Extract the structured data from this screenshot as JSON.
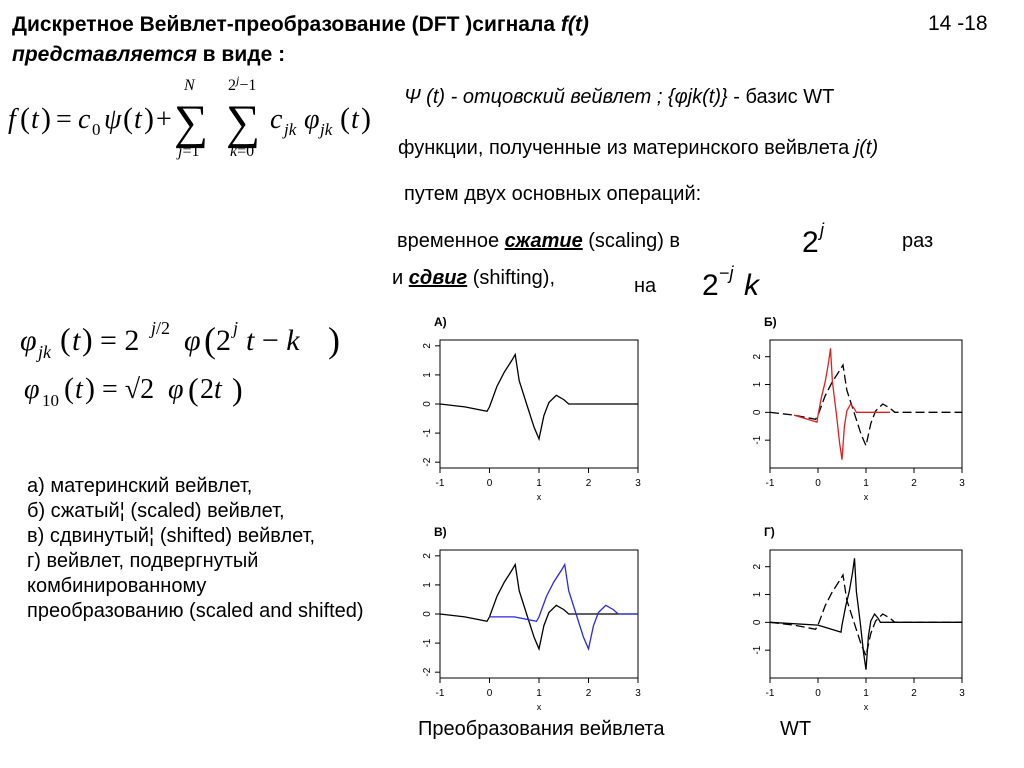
{
  "slide": {
    "title_line1_prefix": "Дискретное Вейвлет-преобразование (DFT )сигнала ",
    "title_fx": "f(t)",
    "title_line2_italic": "представляется",
    "title_line2_rest": " в виде :",
    "number": "14 -18"
  },
  "formulas": {
    "main": "f(t) = c0 ψ(t) + Σ(j=1..N) Σ(k=0..2^j−1) cjk φjk(t)",
    "phi_jk": "φjk(t) = 2^(j/2) φ(2^j t − k)",
    "phi_10": "φ10(t) = √2 φ(2t)",
    "scale_factor": "2^j",
    "shift_factor": "2^−j k"
  },
  "text": {
    "psi_line_italic": "Ψ (t) - отцовский вейвлет ;  {φjk(t)}",
    "psi_line_rest": " - базис WT",
    "functions_line": "функции, полученные из материнского вейвлета ",
    "functions_italic": "j(t)",
    "ops_line": "путем двух основных операций:",
    "temporal_prefix": "временное ",
    "temporal_bold": "сжатие",
    "temporal_suffix": " (scaling) в",
    "times": "раз",
    "shift_prefix": "и ",
    "shift_bold": "сдвиг",
    "shift_suffix": " (shifting),",
    "on": "на"
  },
  "list": [
    "а) материнский вейвлет,",
    "б) сжатый¦ (scaled) вейвлет,",
    "в) сдвинутый¦ (shifted) вейвлет,",
    "г) вейвлет, подвергнутый комбинированному преобразованию (scaled and shifted)"
  ],
  "caption": {
    "left": "Преобразования вейвлета",
    "right": "WT"
  },
  "chart_data": [
    {
      "type": "line",
      "title": "А)",
      "xlabel": "x",
      "xlim": [
        -1,
        3
      ],
      "ylim": [
        -2.2,
        2.2
      ],
      "x_ticks": [
        -1,
        0,
        1,
        2,
        3
      ],
      "y_ticks": [
        -2,
        -1,
        0,
        1,
        2
      ],
      "series": [
        {
          "color": "#000000",
          "dash": false,
          "x": [
            -1,
            -0.5,
            -0.05,
            0.0,
            0.15,
            0.3,
            0.45,
            0.52,
            0.6,
            0.75,
            0.9,
            1.0,
            1.1,
            1.2,
            1.35,
            1.5,
            1.6,
            2.0,
            3.0
          ],
          "y": [
            0,
            -0.1,
            -0.25,
            -0.1,
            0.6,
            1.1,
            1.5,
            1.7,
            0.8,
            0.0,
            -0.8,
            -1.2,
            -0.4,
            0.05,
            0.3,
            0.15,
            0.0,
            0.0,
            0.0
          ]
        }
      ]
    },
    {
      "type": "line",
      "title": "Б)",
      "xlabel": "x",
      "xlim": [
        -1,
        3
      ],
      "ylim": [
        -2.0,
        2.6
      ],
      "x_ticks": [
        -1,
        0,
        1,
        2,
        3
      ],
      "y_ticks": [
        -1,
        0,
        1,
        2
      ],
      "series": [
        {
          "color": "#000000",
          "dash": true,
          "x": [
            -1,
            -0.5,
            -0.05,
            0.0,
            0.15,
            0.3,
            0.45,
            0.52,
            0.6,
            0.75,
            0.9,
            1.0,
            1.1,
            1.2,
            1.35,
            1.5,
            1.6,
            2.0,
            3.0
          ],
          "y": [
            0,
            -0.1,
            -0.25,
            -0.1,
            0.6,
            1.1,
            1.5,
            1.7,
            0.8,
            0.0,
            -0.8,
            -1.2,
            -0.4,
            0.05,
            0.3,
            0.15,
            0.0,
            0.0,
            0.0
          ]
        },
        {
          "color": "#e02020",
          "dash": false,
          "x": [
            -0.5,
            -0.02,
            0.0,
            0.08,
            0.15,
            0.22,
            0.26,
            0.3,
            0.38,
            0.45,
            0.5,
            0.55,
            0.6,
            0.68,
            0.75,
            0.8,
            1.0,
            1.5
          ],
          "y": [
            -0.1,
            -0.35,
            -0.1,
            0.6,
            1.1,
            1.8,
            2.3,
            1.1,
            0.0,
            -1.1,
            -1.7,
            -0.5,
            0.05,
            0.3,
            0.15,
            0.0,
            0.0,
            0.0
          ]
        }
      ]
    },
    {
      "type": "line",
      "title": "В)",
      "xlabel": "x",
      "xlim": [
        -1,
        3
      ],
      "ylim": [
        -2.2,
        2.2
      ],
      "x_ticks": [
        -1,
        0,
        1,
        2,
        3
      ],
      "y_ticks": [
        -2,
        -1,
        0,
        1,
        2
      ],
      "series": [
        {
          "color": "#000000",
          "dash": false,
          "x": [
            -1,
            -0.5,
            -0.05,
            0.0,
            0.15,
            0.3,
            0.45,
            0.52,
            0.6,
            0.75,
            0.9,
            1.0,
            1.1,
            1.2,
            1.35,
            1.5,
            1.6,
            2.0,
            3.0
          ],
          "y": [
            0,
            -0.1,
            -0.25,
            -0.1,
            0.6,
            1.1,
            1.5,
            1.7,
            0.8,
            0.0,
            -0.8,
            -1.2,
            -0.4,
            0.05,
            0.3,
            0.15,
            0.0,
            0.0,
            0.0
          ]
        },
        {
          "color": "#2a2ae0",
          "dash": false,
          "x": [
            0.0,
            0.5,
            0.95,
            1.0,
            1.15,
            1.3,
            1.45,
            1.52,
            1.6,
            1.75,
            1.9,
            2.0,
            2.1,
            2.2,
            2.35,
            2.5,
            2.6,
            3.0
          ],
          "y": [
            -0.1,
            -0.1,
            -0.25,
            -0.1,
            0.6,
            1.1,
            1.5,
            1.7,
            0.8,
            0.0,
            -0.8,
            -1.2,
            -0.4,
            0.05,
            0.3,
            0.15,
            0.0,
            0.0
          ]
        }
      ]
    },
    {
      "type": "line",
      "title": "Г)",
      "xlabel": "x",
      "xlim": [
        -1,
        3
      ],
      "ylim": [
        -2.0,
        2.6
      ],
      "x_ticks": [
        -1,
        0,
        1,
        2,
        3
      ],
      "y_ticks": [
        -1,
        0,
        1,
        2
      ],
      "series": [
        {
          "color": "#000000",
          "dash": true,
          "x": [
            -1,
            -0.5,
            -0.05,
            0.0,
            0.15,
            0.3,
            0.45,
            0.52,
            0.6,
            0.75,
            0.9,
            1.0,
            1.1,
            1.2,
            1.35,
            1.5,
            1.6,
            2.0,
            3.0
          ],
          "y": [
            0,
            -0.1,
            -0.25,
            -0.1,
            0.6,
            1.1,
            1.5,
            1.7,
            0.8,
            0.0,
            -0.8,
            -1.2,
            -0.4,
            0.05,
            0.3,
            0.15,
            0.0,
            0.0,
            0.0
          ]
        },
        {
          "color": "#000000",
          "dash": false,
          "x": [
            -1,
            0.0,
            0.48,
            0.5,
            0.58,
            0.65,
            0.72,
            0.76,
            0.8,
            0.88,
            0.95,
            1.0,
            1.05,
            1.1,
            1.18,
            1.25,
            1.3,
            2.0,
            3.0
          ],
          "y": [
            0,
            -0.1,
            -0.35,
            -0.1,
            0.6,
            1.1,
            1.8,
            2.3,
            1.1,
            0.0,
            -1.1,
            -1.7,
            -0.5,
            0.05,
            0.3,
            0.15,
            0.0,
            0.0,
            0.0
          ]
        }
      ]
    }
  ]
}
